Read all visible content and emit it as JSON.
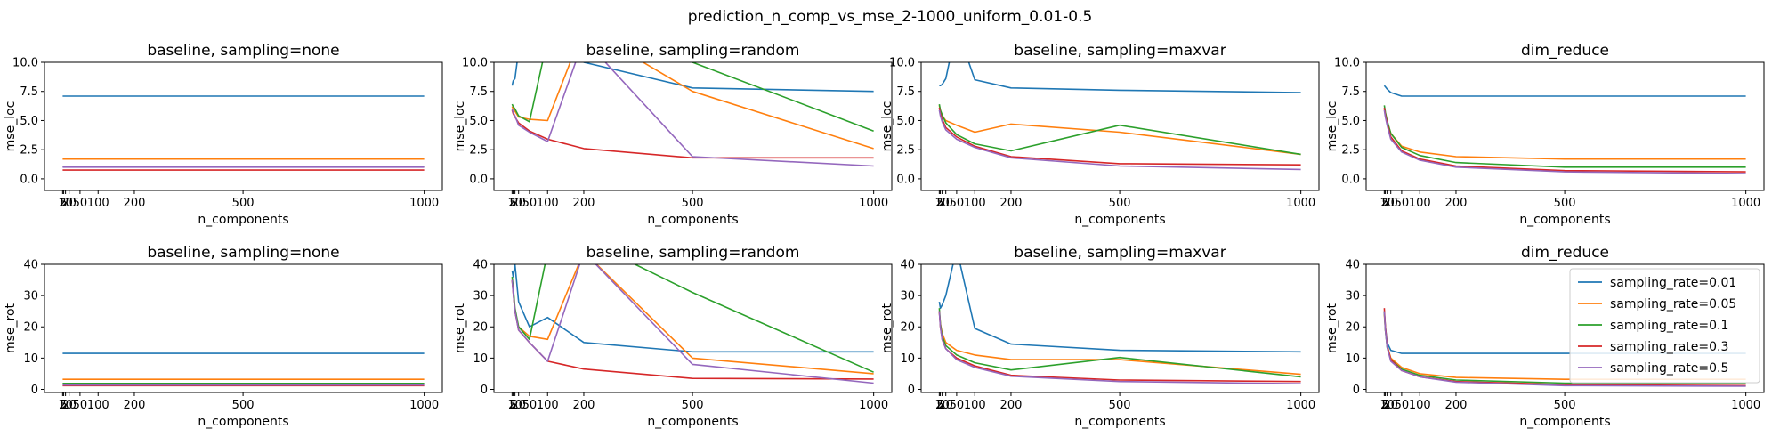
{
  "figure": {
    "title": "prediction_n_comp_vs_mse_2-1000_uniform_0.01-0.5"
  },
  "series_colors": [
    "#1f77b4",
    "#ff7f0e",
    "#2ca02c",
    "#d62728",
    "#9467bd"
  ],
  "chart_data": [
    {
      "type": "line",
      "title": "baseline, sampling=none",
      "xlabel": "n_components",
      "ylabel": "mse_loc",
      "xlim": [
        -48,
        1050
      ],
      "ylim": [
        -1,
        10
      ],
      "xticks": [
        2,
        5,
        10,
        20,
        50,
        100,
        200,
        500,
        1000
      ],
      "yticks": [
        0.0,
        2.5,
        5.0,
        7.5,
        10.0
      ],
      "x": [
        2,
        5,
        10,
        20,
        50,
        100,
        200,
        500,
        1000
      ],
      "series": [
        {
          "name": "sampling_rate=0.01",
          "values": [
            7.1,
            7.1,
            7.1,
            7.1,
            7.1,
            7.1,
            7.1,
            7.1,
            7.1
          ]
        },
        {
          "name": "sampling_rate=0.05",
          "values": [
            1.7,
            1.7,
            1.7,
            1.7,
            1.7,
            1.7,
            1.7,
            1.7,
            1.7
          ]
        },
        {
          "name": "sampling_rate=0.1",
          "values": [
            1.05,
            1.05,
            1.05,
            1.05,
            1.05,
            1.05,
            1.05,
            1.05,
            1.05
          ]
        },
        {
          "name": "sampling_rate=0.3",
          "values": [
            0.75,
            0.75,
            0.75,
            0.75,
            0.75,
            0.75,
            0.75,
            0.75,
            0.75
          ]
        },
        {
          "name": "sampling_rate=0.5",
          "values": [
            1.0,
            1.0,
            1.0,
            1.0,
            1.0,
            1.0,
            1.0,
            1.0,
            1.0
          ]
        }
      ]
    },
    {
      "type": "line",
      "title": "baseline, sampling=random",
      "xlabel": "n_components",
      "ylabel": "mse_loc",
      "xlim": [
        -48,
        1050
      ],
      "ylim": [
        -1,
        10
      ],
      "xticks": [
        2,
        5,
        10,
        20,
        50,
        100,
        200,
        500,
        1000
      ],
      "yticks": [
        0.0,
        2.5,
        5.0,
        7.5,
        10.0
      ],
      "x": [
        2,
        5,
        10,
        20,
        50,
        100,
        200,
        500,
        1000
      ],
      "series": [
        {
          "name": "sampling_rate=0.01",
          "values": [
            8.0,
            8.4,
            8.6,
            11.0,
            14.0,
            16.0,
            10.0,
            7.8,
            7.5
          ]
        },
        {
          "name": "sampling_rate=0.05",
          "values": [
            6.2,
            6.0,
            5.8,
            5.3,
            5.1,
            5.0,
            13.0,
            7.5,
            2.6
          ]
        },
        {
          "name": "sampling_rate=0.1",
          "values": [
            6.4,
            6.2,
            6.0,
            5.4,
            4.9,
            12.0,
            16.0,
            10.0,
            4.1
          ]
        },
        {
          "name": "sampling_rate=0.3",
          "values": [
            5.9,
            5.6,
            5.3,
            4.8,
            4.1,
            3.4,
            2.6,
            1.8,
            1.8
          ]
        },
        {
          "name": "sampling_rate=0.5",
          "values": [
            6.0,
            5.7,
            5.4,
            4.6,
            4.0,
            3.2,
            12.0,
            1.9,
            1.1
          ]
        }
      ]
    },
    {
      "type": "line",
      "title": "baseline, sampling=maxvar",
      "xlabel": "n_components",
      "ylabel": "mse_loc",
      "xlim": [
        -48,
        1050
      ],
      "ylim": [
        -1,
        10
      ],
      "xticks": [
        2,
        5,
        10,
        20,
        50,
        100,
        200,
        500,
        1000
      ],
      "yticks": [
        0.0,
        2.5,
        5.0,
        7.5,
        10.0
      ],
      "x": [
        2,
        5,
        10,
        20,
        50,
        100,
        200,
        500,
        1000
      ],
      "series": [
        {
          "name": "sampling_rate=0.01",
          "values": [
            8.0,
            8.0,
            8.1,
            8.6,
            13.0,
            8.5,
            7.8,
            7.6,
            7.4
          ]
        },
        {
          "name": "sampling_rate=0.05",
          "values": [
            6.3,
            5.8,
            5.4,
            5.0,
            4.6,
            4.0,
            4.7,
            4.0,
            2.1
          ]
        },
        {
          "name": "sampling_rate=0.1",
          "values": [
            6.4,
            5.9,
            5.5,
            4.8,
            3.8,
            3.0,
            2.4,
            4.6,
            2.1
          ]
        },
        {
          "name": "sampling_rate=0.3",
          "values": [
            6.1,
            5.6,
            5.1,
            4.4,
            3.6,
            2.8,
            1.9,
            1.3,
            1.2
          ]
        },
        {
          "name": "sampling_rate=0.5",
          "values": [
            5.9,
            5.4,
            4.9,
            4.2,
            3.4,
            2.7,
            1.8,
            1.1,
            0.8
          ]
        }
      ]
    },
    {
      "type": "line",
      "title": "dim_reduce",
      "xlabel": "n_components",
      "ylabel": "mse_loc",
      "xlim": [
        -48,
        1050
      ],
      "ylim": [
        -1,
        10
      ],
      "xticks": [
        2,
        5,
        10,
        20,
        50,
        100,
        200,
        500,
        1000
      ],
      "yticks": [
        0.0,
        2.5,
        5.0,
        7.5,
        10.0
      ],
      "x": [
        2,
        5,
        10,
        20,
        50,
        100,
        200,
        500,
        1000
      ],
      "series": [
        {
          "name": "sampling_rate=0.01",
          "values": [
            8.0,
            7.9,
            7.7,
            7.4,
            7.1,
            7.1,
            7.1,
            7.1,
            7.1
          ]
        },
        {
          "name": "sampling_rate=0.05",
          "values": [
            6.0,
            5.5,
            4.9,
            3.9,
            2.8,
            2.3,
            1.9,
            1.7,
            1.7
          ]
        },
        {
          "name": "sampling_rate=0.1",
          "values": [
            6.3,
            5.7,
            5.0,
            3.9,
            2.7,
            2.0,
            1.4,
            1.0,
            1.0
          ]
        },
        {
          "name": "sampling_rate=0.3",
          "values": [
            6.1,
            5.5,
            4.8,
            3.6,
            2.4,
            1.7,
            1.1,
            0.7,
            0.6
          ]
        },
        {
          "name": "sampling_rate=0.5",
          "values": [
            5.9,
            5.3,
            4.6,
            3.4,
            2.3,
            1.6,
            1.0,
            0.6,
            0.45
          ]
        }
      ]
    },
    {
      "type": "line",
      "title": "baseline, sampling=none",
      "xlabel": "n_components",
      "ylabel": "mse_rot",
      "xlim": [
        -48,
        1050
      ],
      "ylim": [
        -1,
        40
      ],
      "xticks": [
        2,
        5,
        10,
        20,
        50,
        100,
        200,
        500,
        1000
      ],
      "yticks": [
        0,
        10,
        20,
        30,
        40
      ],
      "x": [
        2,
        5,
        10,
        20,
        50,
        100,
        200,
        500,
        1000
      ],
      "series": [
        {
          "name": "sampling_rate=0.01",
          "values": [
            11.5,
            11.5,
            11.5,
            11.5,
            11.5,
            11.5,
            11.5,
            11.5,
            11.5
          ]
        },
        {
          "name": "sampling_rate=0.05",
          "values": [
            3.2,
            3.2,
            3.2,
            3.2,
            3.2,
            3.2,
            3.2,
            3.2,
            3.2
          ]
        },
        {
          "name": "sampling_rate=0.1",
          "values": [
            1.9,
            1.9,
            1.9,
            1.9,
            1.9,
            1.9,
            1.9,
            1.9,
            1.9
          ]
        },
        {
          "name": "sampling_rate=0.3",
          "values": [
            1.2,
            1.2,
            1.2,
            1.2,
            1.2,
            1.2,
            1.2,
            1.2,
            1.2
          ]
        },
        {
          "name": "sampling_rate=0.5",
          "values": [
            1.4,
            1.4,
            1.4,
            1.4,
            1.4,
            1.4,
            1.4,
            1.4,
            1.4
          ]
        }
      ]
    },
    {
      "type": "line",
      "title": "baseline, sampling=random",
      "xlabel": "n_components",
      "ylabel": "mse_rot",
      "xlim": [
        -48,
        1050
      ],
      "ylim": [
        -1,
        40
      ],
      "xticks": [
        2,
        5,
        10,
        20,
        50,
        100,
        200,
        500,
        1000
      ],
      "yticks": [
        0,
        10,
        20,
        30,
        40
      ],
      "x": [
        2,
        5,
        10,
        20,
        50,
        100,
        200,
        500,
        1000
      ],
      "series": [
        {
          "name": "sampling_rate=0.01",
          "values": [
            38,
            36,
            40,
            28,
            20,
            23,
            15,
            12,
            12
          ]
        },
        {
          "name": "sampling_rate=0.05",
          "values": [
            35,
            32,
            25,
            20,
            17,
            16,
            44,
            10,
            5
          ]
        },
        {
          "name": "sampling_rate=0.1",
          "values": [
            36,
            33,
            26,
            20,
            16,
            44,
            48,
            31,
            5.5
          ]
        },
        {
          "name": "sampling_rate=0.3",
          "values": [
            35,
            31,
            25,
            19,
            15,
            9,
            6.5,
            3.5,
            3.3
          ]
        },
        {
          "name": "sampling_rate=0.5",
          "values": [
            35,
            31,
            25,
            19,
            15,
            9,
            44,
            8,
            2
          ]
        }
      ]
    },
    {
      "type": "line",
      "title": "baseline, sampling=maxvar",
      "xlabel": "n_components",
      "ylabel": "mse_rot",
      "xlim": [
        -48,
        1050
      ],
      "ylim": [
        -1,
        40
      ],
      "xticks": [
        2,
        5,
        10,
        20,
        50,
        100,
        200,
        500,
        1000
      ],
      "yticks": [
        0,
        10,
        20,
        30,
        40
      ],
      "x": [
        2,
        5,
        10,
        20,
        50,
        100,
        200,
        500,
        1000
      ],
      "series": [
        {
          "name": "sampling_rate=0.01",
          "values": [
            28,
            26,
            27,
            30,
            45,
            19.5,
            14.5,
            12.5,
            12
          ]
        },
        {
          "name": "sampling_rate=0.05",
          "values": [
            25,
            21,
            18,
            15,
            12.5,
            11,
            9.5,
            9.5,
            4.8
          ]
        },
        {
          "name": "sampling_rate=0.1",
          "values": [
            26,
            21,
            17,
            14,
            11,
            8.5,
            6.2,
            10.2,
            4
          ]
        },
        {
          "name": "sampling_rate=0.3",
          "values": [
            25,
            20,
            16,
            13,
            10,
            7.5,
            4.5,
            3,
            2.5
          ]
        },
        {
          "name": "sampling_rate=0.5",
          "values": [
            25,
            20,
            16,
            13,
            9.5,
            7,
            4.2,
            2.5,
            1.8
          ]
        }
      ]
    },
    {
      "type": "line",
      "title": "dim_reduce",
      "xlabel": "n_components",
      "ylabel": "mse_rot",
      "xlim": [
        -48,
        1050
      ],
      "ylim": [
        -1,
        40
      ],
      "xticks": [
        2,
        5,
        10,
        20,
        50,
        100,
        200,
        500,
        1000
      ],
      "yticks": [
        0,
        10,
        20,
        30,
        40
      ],
      "x": [
        2,
        5,
        10,
        20,
        50,
        100,
        200,
        500,
        1000
      ],
      "legend_position": "upper right",
      "series": [
        {
          "name": "sampling_rate=0.01",
          "values": [
            25,
            20,
            15,
            12.5,
            11.5,
            11.5,
            11.5,
            11.5,
            11.5
          ]
        },
        {
          "name": "sampling_rate=0.05",
          "values": [
            24,
            19,
            14,
            10,
            7,
            5,
            3.8,
            3.2,
            3.2
          ]
        },
        {
          "name": "sampling_rate=0.1",
          "values": [
            25,
            19,
            13.5,
            9.5,
            6.5,
            4.5,
            3,
            2,
            1.9
          ]
        },
        {
          "name": "sampling_rate=0.3",
          "values": [
            26,
            20,
            14,
            9.5,
            6,
            4,
            2.5,
            1.5,
            1.2
          ]
        },
        {
          "name": "sampling_rate=0.5",
          "values": [
            25,
            19,
            13.5,
            9,
            6,
            4,
            2.3,
            1.2,
            1
          ]
        }
      ]
    }
  ]
}
